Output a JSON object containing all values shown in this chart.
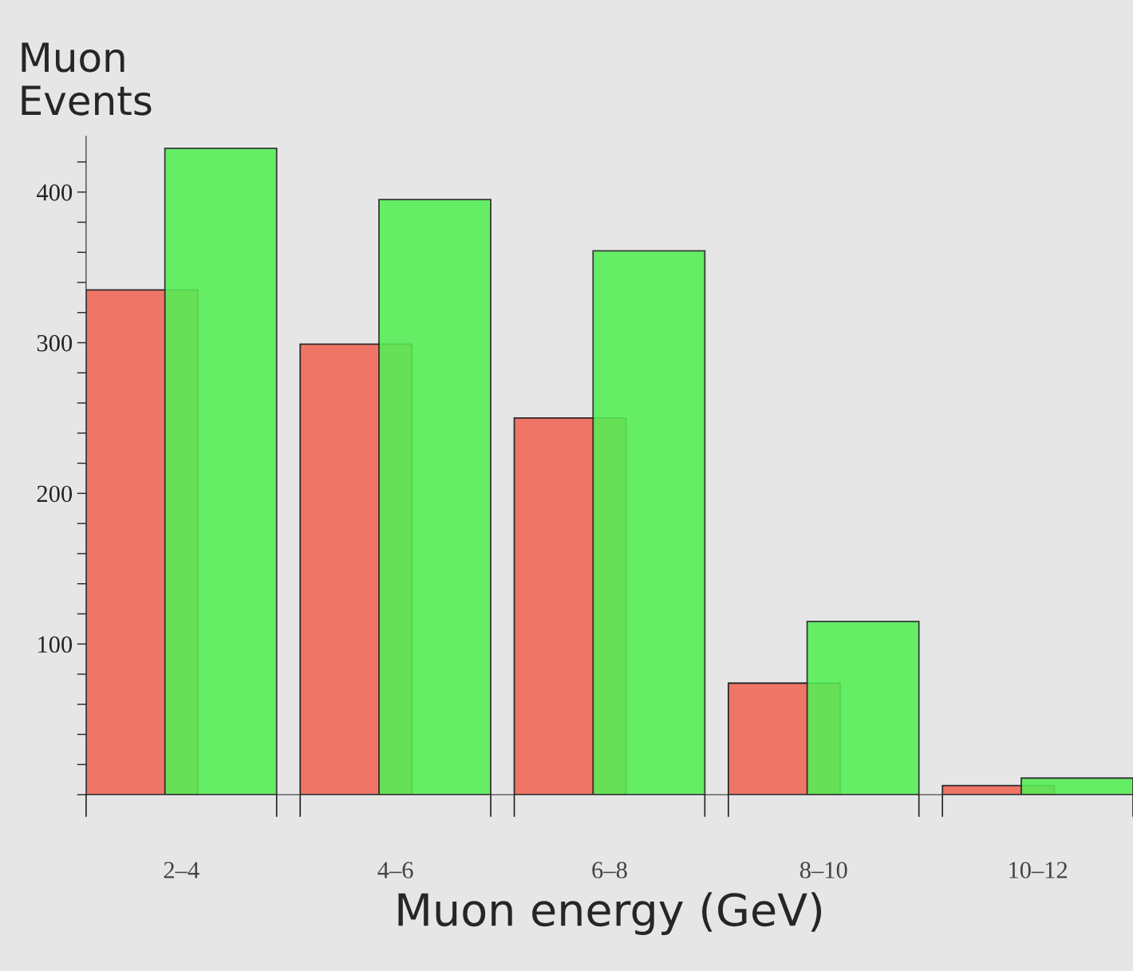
{
  "chart_data": {
    "type": "bar",
    "xlabel": "Muon energy (GeV)",
    "ylabel": "Muon\nEvents",
    "categories": [
      "2–4",
      "4–6",
      "6–8",
      "8–10",
      "10–12"
    ],
    "series": [
      {
        "color": "#f07060",
        "values": [
          335,
          299,
          250,
          74,
          6
        ]
      },
      {
        "color": "#55ee55",
        "values": [
          429,
          395,
          361,
          115,
          11
        ]
      }
    ],
    "ylim": [
      0,
      437
    ],
    "yticks": [
      {
        "value": 0,
        "label": null
      },
      {
        "value": 20,
        "label": null
      },
      {
        "value": 40,
        "label": null
      },
      {
        "value": 60,
        "label": null
      },
      {
        "value": 80,
        "label": null
      },
      100,
      {
        "value": 120,
        "label": null
      },
      {
        "value": 140,
        "label": null
      },
      {
        "value": 160,
        "label": null
      },
      {
        "value": 180,
        "label": null
      },
      200,
      {
        "value": 220,
        "label": null
      },
      {
        "value": 240,
        "label": null
      },
      {
        "value": 260,
        "label": null
      },
      {
        "value": 280,
        "label": null
      },
      300,
      {
        "value": 320,
        "label": null
      },
      {
        "value": 340,
        "label": null
      },
      {
        "value": 360,
        "label": null
      },
      {
        "value": 380,
        "label": null
      },
      400,
      {
        "value": 420,
        "label": null
      }
    ],
    "grid": false,
    "legend": false
  }
}
